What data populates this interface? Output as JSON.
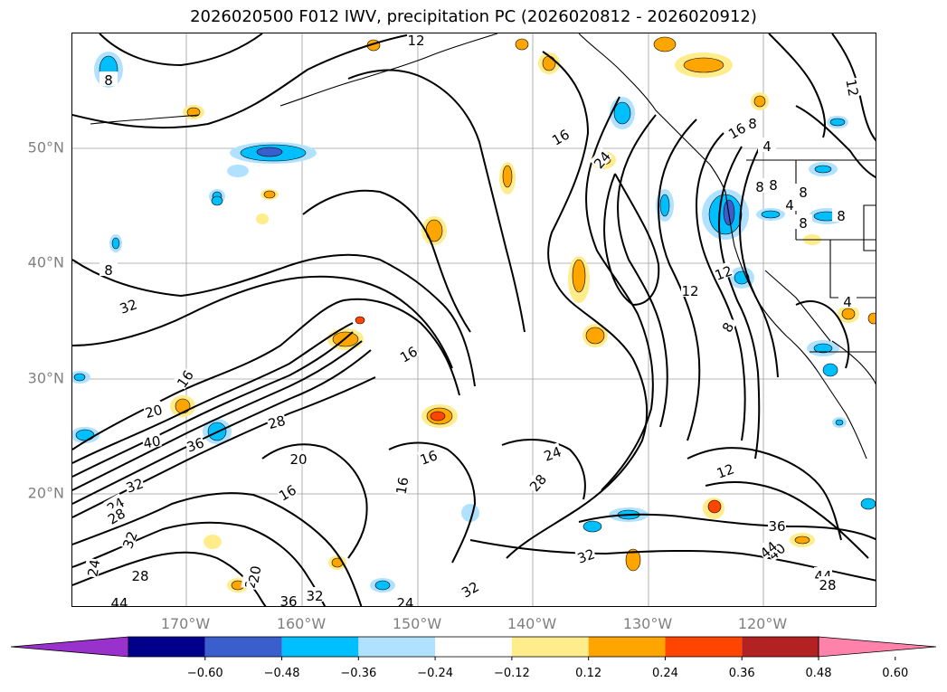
{
  "title": "2026020500 F012 IWV, precipitation PC (2026020812 - 2026020912)",
  "axes": {
    "lat_labels": [
      "50°N",
      "40°N",
      "30°N",
      "20°N"
    ],
    "lon_labels": [
      "170°W",
      "160°W",
      "150°W",
      "140°W",
      "130°W",
      "120°W"
    ]
  },
  "contour_labels": [
    "12",
    "8",
    "16",
    "8",
    "8",
    "12",
    "8",
    "4",
    "16",
    "24",
    "8",
    "4",
    "8",
    "8",
    "8",
    "12",
    "8",
    "16",
    "32",
    "12",
    "4",
    "16",
    "20",
    "40",
    "36",
    "28",
    "20",
    "16",
    "16",
    "16",
    "24",
    "28",
    "12",
    "32",
    "24",
    "28",
    "32",
    "32",
    "24",
    "20",
    "28",
    "36",
    "40",
    "44",
    "44",
    "28",
    "36",
    "32",
    "24",
    "32",
    "20",
    "44"
  ],
  "colorbar": {
    "ticks": [
      "−0.60",
      "−0.48",
      "−0.36",
      "−0.24",
      "−0.12",
      "0.12",
      "0.24",
      "0.36",
      "0.48",
      "0.60"
    ],
    "colors": [
      "#9932cc",
      "#00008b",
      "#3a5fcd",
      "#00bfff",
      "#b0e2ff",
      "#ffffff",
      "#ffec8b",
      "#ffa500",
      "#ff4500",
      "#b22222",
      "#ff82ab"
    ]
  },
  "colors": {
    "grid": "#9e9e9e",
    "contour": "#000000",
    "label": "#808080"
  }
}
